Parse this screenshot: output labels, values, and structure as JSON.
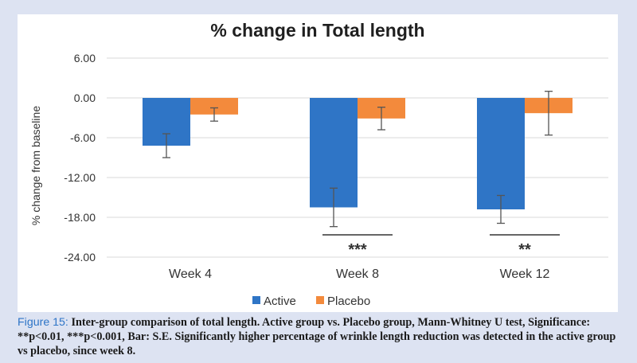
{
  "colors": {
    "active": "#2f75c6",
    "placebo": "#f38a3c",
    "background": "#dde3f2",
    "caption_label": "#2e75c7"
  },
  "chart_data": {
    "type": "bar",
    "title": "% change in Total length",
    "ylabel": "% change from baseline",
    "xlabel": "",
    "categories": [
      "Week 4",
      "Week 8",
      "Week 12"
    ],
    "ylim": [
      -24,
      6
    ],
    "yticks": [
      6,
      0,
      -6,
      -12,
      -18,
      -24
    ],
    "ytick_labels": [
      "6.00",
      "0.00",
      "-6.00",
      "-12.00",
      "-18.00",
      "-24.00"
    ],
    "series": [
      {
        "name": "Active",
        "values": [
          -7.2,
          -16.5,
          -16.8
        ],
        "error": [
          1.8,
          2.9,
          2.1
        ]
      },
      {
        "name": "Placebo",
        "values": [
          -2.5,
          -3.1,
          -2.3
        ],
        "error": [
          1.0,
          1.7,
          3.3
        ]
      }
    ],
    "annotations": [
      {
        "category": "Week 8",
        "text": "***"
      },
      {
        "category": "Week 12",
        "text": "**"
      }
    ],
    "legend_position": "bottom",
    "grid": true
  },
  "caption": {
    "label": "Figure 15:",
    "text": " Inter-group comparison of total length. Active group vs. Placebo group, Mann-Whitney U test, Significance: **p<0.01, ***p<0.001, Bar: S.E. Significantly higher percentage of wrinkle length reduction was detected in the active group vs placebo, since week 8."
  }
}
